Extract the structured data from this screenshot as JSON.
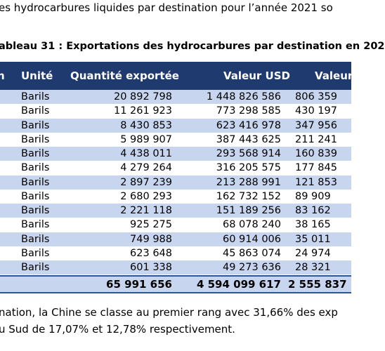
{
  "intro": "es hydrocarbures liquides par destination pour l’année 2021 so",
  "caption": "ableau 31 : Exportations des hydrocarbures par destination en 202",
  "table": {
    "header": [
      "n",
      "Unité",
      "Quantité exportée",
      "Valeur USD",
      "Valeur"
    ],
    "rows": [
      [
        "Barils",
        "20 892 798",
        "1 448 826 586",
        "806 359"
      ],
      [
        "Barils",
        "11 261 923",
        "773 298 585",
        "430 197"
      ],
      [
        "Barils",
        "8 430 853",
        "623 416 978",
        "347 956"
      ],
      [
        "Barils",
        "5 989 907",
        "387 443 625",
        "211 241"
      ],
      [
        "Barils",
        "4 438 011",
        "293 568 914",
        "160 839"
      ],
      [
        "Barils",
        "4 279 264",
        "316 205 575",
        "177 845"
      ],
      [
        "Barils",
        "2 897 239",
        "213 288 991",
        "121 853"
      ],
      [
        "Barils",
        "2 680 293",
        "162 732 152",
        "89 909"
      ],
      [
        "Barils",
        "2 221 118",
        "151 189 256",
        "83 162"
      ],
      [
        "Barils",
        "925 275",
        "68 078 240",
        "38 165"
      ],
      [
        "Barils",
        "749 988",
        "60 914 006",
        "35 011"
      ],
      [
        "Barils",
        "623 648",
        "45 863 074",
        "24 974"
      ],
      [
        "Barils",
        "601 338",
        "49 273 636",
        "28 321"
      ]
    ],
    "total": [
      "65 991 656",
      "4 594 099 617",
      "2 555 837"
    ]
  },
  "outro": [
    "nation, la Chine se classe au premier rang avec 31,66% des exp",
    "u Sud de 17,07% et 12,78% respectivement."
  ]
}
